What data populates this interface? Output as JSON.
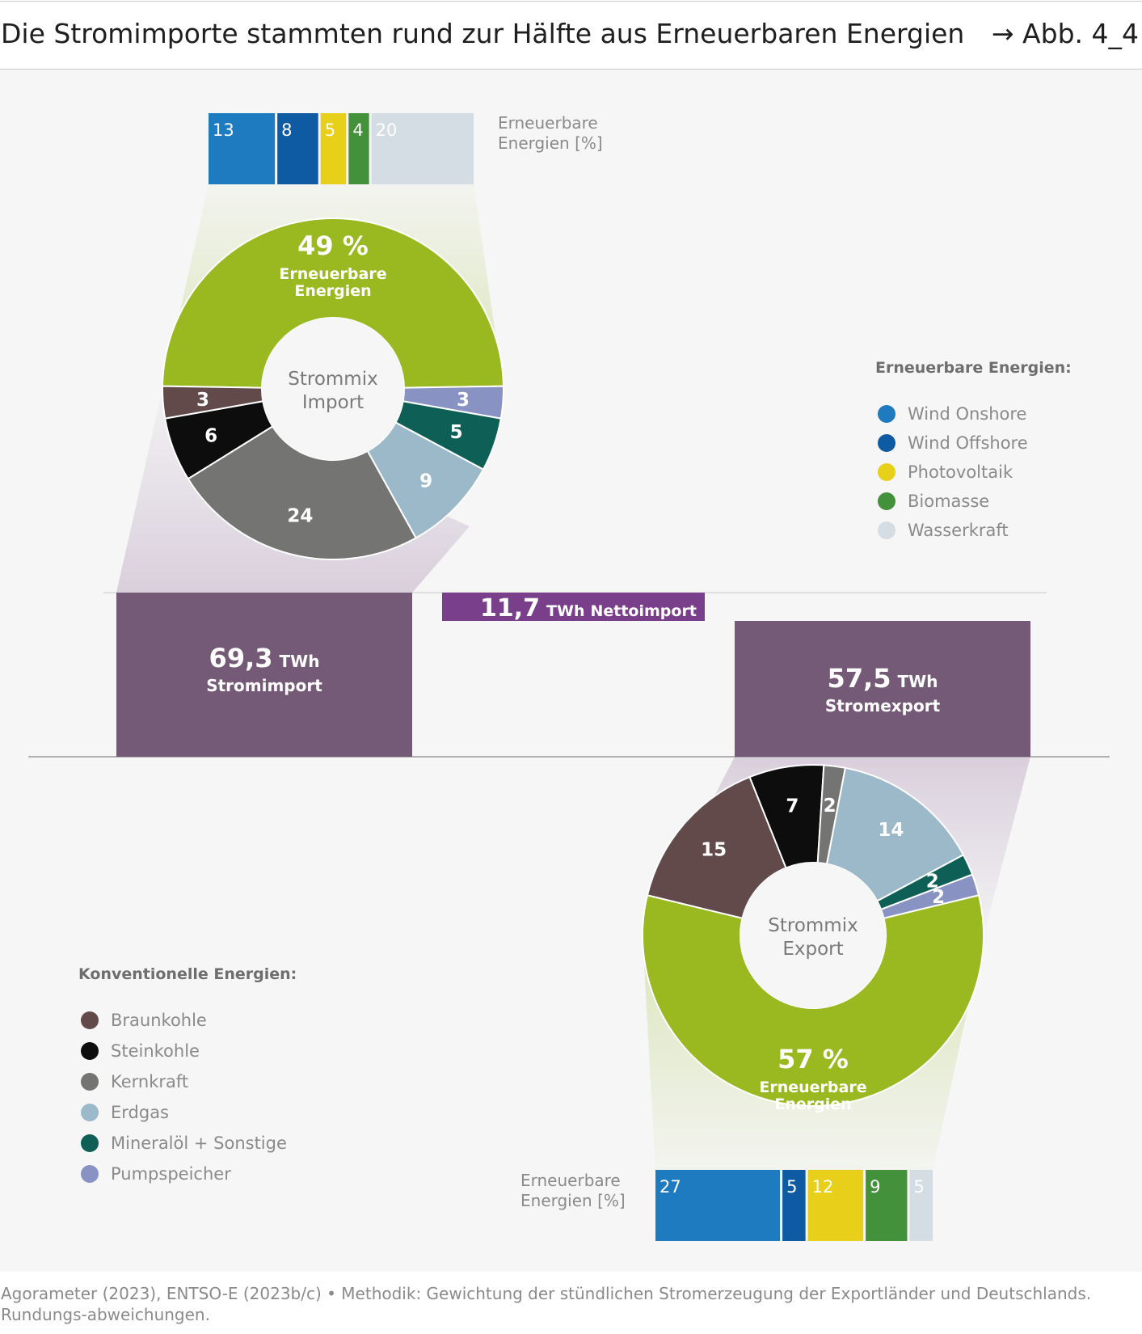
{
  "header": {
    "title": "Die Stromimporte stammten rund zur Hälfte aus Erneuerbaren Energien",
    "figure_ref": "→ Abb. 4_4"
  },
  "source_note": "Agorameter (2023), ENTSO-E (2023b/c) • Methodik: Gewichtung der stündlichen Stromerzeugung der Exportländer und Deutschlands. Rundungs-abweichungen.",
  "colors": {
    "braunkohle": "#624a4b",
    "steinkohle": "#0d0d0d",
    "kernkraft": "#747573",
    "erdgas": "#9cb9ca",
    "mineraloel": "#0e5f55",
    "pumpspeicher": "#8893c3",
    "erneuerbare": "#9ab81f",
    "wind_onshore": "#1f7bc0",
    "wind_offshore": "#0f5ba3",
    "photovoltaik": "#e8cf1a",
    "biomasse": "#43913a",
    "wasserkraft": "#d3dde3",
    "bar_flow": "#745a76",
    "net_bar": "#7a3f8b"
  },
  "chart_data": [
    {
      "type": "pie",
      "id": "import_mix",
      "center_label": [
        "Strommix",
        "Import"
      ],
      "renewable_label": {
        "value": "49 %",
        "text": [
          "Erneuerbare",
          "Energien"
        ]
      },
      "slices": [
        {
          "key": "erneuerbare",
          "value": 49,
          "label": ""
        },
        {
          "key": "pumpspeicher",
          "value": 3,
          "label": "3"
        },
        {
          "key": "mineraloel",
          "value": 5,
          "label": "5"
        },
        {
          "key": "erdgas",
          "value": 9,
          "label": "9"
        },
        {
          "key": "kernkraft",
          "value": 24,
          "label": "24"
        },
        {
          "key": "steinkohle",
          "value": 6,
          "label": "6"
        },
        {
          "key": "braunkohle",
          "value": 3,
          "label": "3"
        }
      ]
    },
    {
      "type": "pie",
      "id": "export_mix",
      "center_label": [
        "Strommix",
        "Export"
      ],
      "renewable_label": {
        "value": "57 %",
        "text": [
          "Erneuerbare",
          "Energien"
        ]
      },
      "slices": [
        {
          "key": "erneuerbare",
          "value": 57,
          "label": ""
        },
        {
          "key": "braunkohle",
          "value": 15,
          "label": "15"
        },
        {
          "key": "steinkohle",
          "value": 7,
          "label": "7"
        },
        {
          "key": "kernkraft",
          "value": 2,
          "label": "2"
        },
        {
          "key": "erdgas",
          "value": 14,
          "label": "14"
        },
        {
          "key": "mineraloel",
          "value": 2,
          "label": "2"
        },
        {
          "key": "pumpspeicher",
          "value": 2,
          "label": "2"
        }
      ]
    },
    {
      "type": "bar",
      "id": "import_renewables",
      "title": [
        "Erneuerbare",
        "Energien [%]"
      ],
      "categories": [
        "Wind Onshore",
        "Wind Offshore",
        "Photovoltaik",
        "Biomasse",
        "Wasserkraft"
      ],
      "values": [
        13,
        8,
        5,
        4,
        20
      ]
    },
    {
      "type": "bar",
      "id": "export_renewables",
      "title": [
        "Erneuerbare",
        "Energien [%]"
      ],
      "categories": [
        "Wind Onshore",
        "Wind Offshore",
        "Photovoltaik",
        "Biomasse",
        "Wasserkraft"
      ],
      "values": [
        27,
        5,
        12,
        9,
        5
      ]
    },
    {
      "type": "bar",
      "id": "flows",
      "categories": [
        "Stromimport",
        "Nettoimport",
        "Stromexport"
      ],
      "series": [
        {
          "name": "Stromimport",
          "value": 69.3,
          "value_label": "69,3",
          "unit": "TWh",
          "label": "Stromimport"
        },
        {
          "name": "Nettoimport",
          "value": 11.7,
          "value_label": "11,7",
          "unit": "TWh",
          "label": "Nettoimport"
        },
        {
          "name": "Stromexport",
          "value": 57.5,
          "value_label": "57,5",
          "unit": "TWh",
          "label": "Stromexport"
        }
      ]
    }
  ],
  "legends": {
    "renewable": {
      "title": "Erneuerbare Energien:",
      "items": [
        {
          "key": "wind_onshore",
          "label": "Wind Onshore"
        },
        {
          "key": "wind_offshore",
          "label": "Wind Offshore"
        },
        {
          "key": "photovoltaik",
          "label": "Photovoltaik"
        },
        {
          "key": "biomasse",
          "label": "Biomasse"
        },
        {
          "key": "wasserkraft",
          "label": "Wasserkraft"
        }
      ]
    },
    "conventional": {
      "title": "Konventionelle Energien:",
      "items": [
        {
          "key": "braunkohle",
          "label": "Braunkohle"
        },
        {
          "key": "steinkohle",
          "label": "Steinkohle"
        },
        {
          "key": "kernkraft",
          "label": "Kernkraft"
        },
        {
          "key": "erdgas",
          "label": "Erdgas"
        },
        {
          "key": "mineraloel",
          "label": "Mineralöl + Sonstige"
        },
        {
          "key": "pumpspeicher",
          "label": "Pumpspeicher"
        }
      ]
    }
  }
}
